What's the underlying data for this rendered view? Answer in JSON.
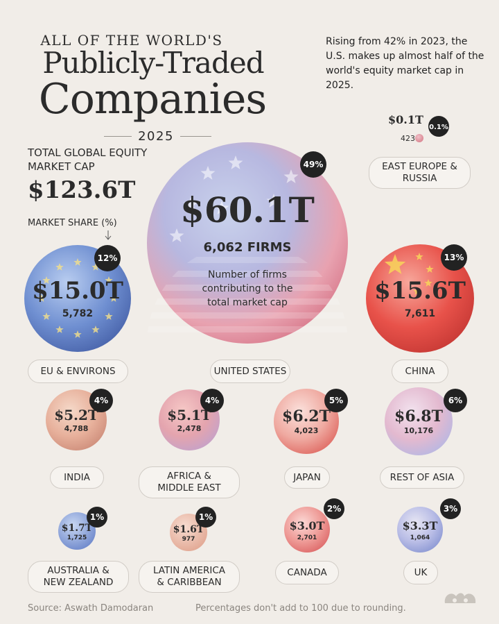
{
  "title": {
    "kicker": "ALL OF THE WORLD'S",
    "line1": "Publicly-Traded",
    "line2": "Companies",
    "year": "2025"
  },
  "total": {
    "label": "TOTAL GLOBAL EQUITY MARKET CAP",
    "value": "$123.6T"
  },
  "share_label": "MARKET SHARE (%)",
  "note": "Rising from 42% in 2023, the U.S. makes up almost half of the world's equity market cap in 2025.",
  "us_annotation": "Number of firms contributing to the total market cap",
  "footer": {
    "source": "Source: Aswath Damodaran",
    "disclaimer": "Percentages don't add to 100 due to rounding."
  },
  "colors": {
    "background": "#f1ede8",
    "text": "#2b2b2b",
    "badge": "#222222"
  },
  "chart_data": {
    "type": "bubble",
    "value_unit": "T",
    "regions": [
      {
        "name": "UNITED STATES",
        "market_cap": 60.1,
        "cap_label": "$60.1T",
        "firms": "6,062 FIRMS",
        "share": "49%",
        "icon": "us-flag"
      },
      {
        "name": "EU & ENVIRONS",
        "market_cap": 15.0,
        "cap_label": "$15.0T",
        "firms": "5,782",
        "share": "12%",
        "icon": "eu-flag"
      },
      {
        "name": "CHINA",
        "market_cap": 15.6,
        "cap_label": "$15.6T",
        "firms": "7,611",
        "share": "13%",
        "icon": "china-flag"
      },
      {
        "name": "EAST EUROPE & RUSSIA",
        "market_cap": 0.1,
        "cap_label": "$0.1T",
        "firms": "423",
        "share": "0.1%",
        "icon": "russia-flag"
      },
      {
        "name": "INDIA",
        "market_cap": 5.2,
        "cap_label": "$5.2T",
        "firms": "4,788",
        "share": "4%",
        "icon": "india-flag"
      },
      {
        "name": "AFRICA & MIDDLE EAST",
        "market_cap": 5.1,
        "cap_label": "$5.1T",
        "firms": "2,478",
        "share": "4%",
        "icon": "africa-flag"
      },
      {
        "name": "JAPAN",
        "market_cap": 6.2,
        "cap_label": "$6.2T",
        "firms": "4,023",
        "share": "5%",
        "icon": "japan-flag"
      },
      {
        "name": "REST OF ASIA",
        "market_cap": 6.8,
        "cap_label": "$6.8T",
        "firms": "10,176",
        "share": "6%",
        "icon": "asia-flag"
      },
      {
        "name": "AUSTRALIA & NEW ZEALAND",
        "market_cap": 1.7,
        "cap_label": "$1.7T",
        "firms": "1,725",
        "share": "1%",
        "icon": "australia-flag"
      },
      {
        "name": "LATIN AMERICA & CARIBBEAN",
        "market_cap": 1.6,
        "cap_label": "$1.6T",
        "firms": "977",
        "share": "1%",
        "icon": "latam-flag"
      },
      {
        "name": "CANADA",
        "market_cap": 3.0,
        "cap_label": "$3.0T",
        "firms": "2,701",
        "share": "2%",
        "icon": "canada-flag"
      },
      {
        "name": "UK",
        "market_cap": 3.3,
        "cap_label": "$3.3T",
        "firms": "1,064",
        "share": "3%",
        "icon": "uk-flag"
      }
    ]
  }
}
